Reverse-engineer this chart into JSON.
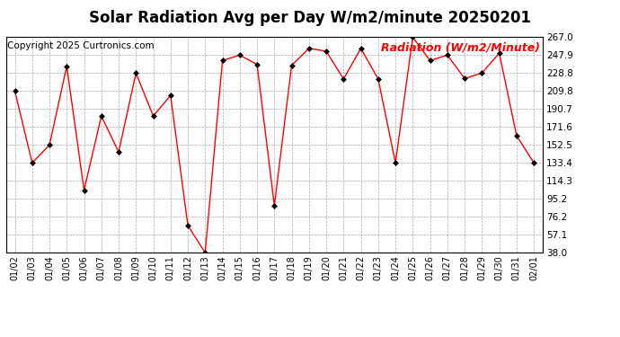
{
  "title": "Solar Radiation Avg per Day W/m2/minute 20250201",
  "copyright": "Copyright 2025 Curtronics.com",
  "legend_label": "Radiation (W/m2/Minute)",
  "dates": [
    "01/02",
    "01/03",
    "01/04",
    "01/05",
    "01/06",
    "01/07",
    "01/08",
    "01/09",
    "01/10",
    "01/11",
    "01/12",
    "01/13",
    "01/14",
    "01/15",
    "01/16",
    "01/17",
    "01/18",
    "01/19",
    "01/20",
    "01/21",
    "01/22",
    "01/23",
    "01/24",
    "01/25",
    "01/26",
    "01/27",
    "01/28",
    "01/29",
    "01/30",
    "01/31",
    "02/01"
  ],
  "values": [
    209.8,
    133.4,
    152.5,
    236.0,
    104.5,
    183.2,
    145.0,
    228.8,
    183.2,
    205.0,
    67.0,
    38.0,
    242.0,
    247.9,
    238.0,
    88.0,
    237.0,
    255.0,
    252.0,
    222.5,
    255.0,
    222.5,
    133.4,
    267.0,
    242.0,
    247.9,
    223.0,
    228.8,
    250.0,
    162.5,
    133.4
  ],
  "yticks": [
    38.0,
    57.1,
    76.2,
    95.2,
    114.3,
    133.4,
    152.5,
    171.6,
    190.7,
    209.8,
    228.8,
    247.9,
    267.0
  ],
  "ymin": 38.0,
  "ymax": 267.0,
  "line_color": "red",
  "marker": "D",
  "marker_color": "black",
  "marker_size": 3,
  "marker_linewidth": 0.5,
  "line_width": 1.0,
  "background_color": "white",
  "grid_color": "#aaaaaa",
  "title_fontsize": 12,
  "copyright_fontsize": 7.5,
  "legend_color": "red",
  "legend_fontsize": 9,
  "tick_fontsize": 7.5,
  "xtick_fontsize": 7
}
